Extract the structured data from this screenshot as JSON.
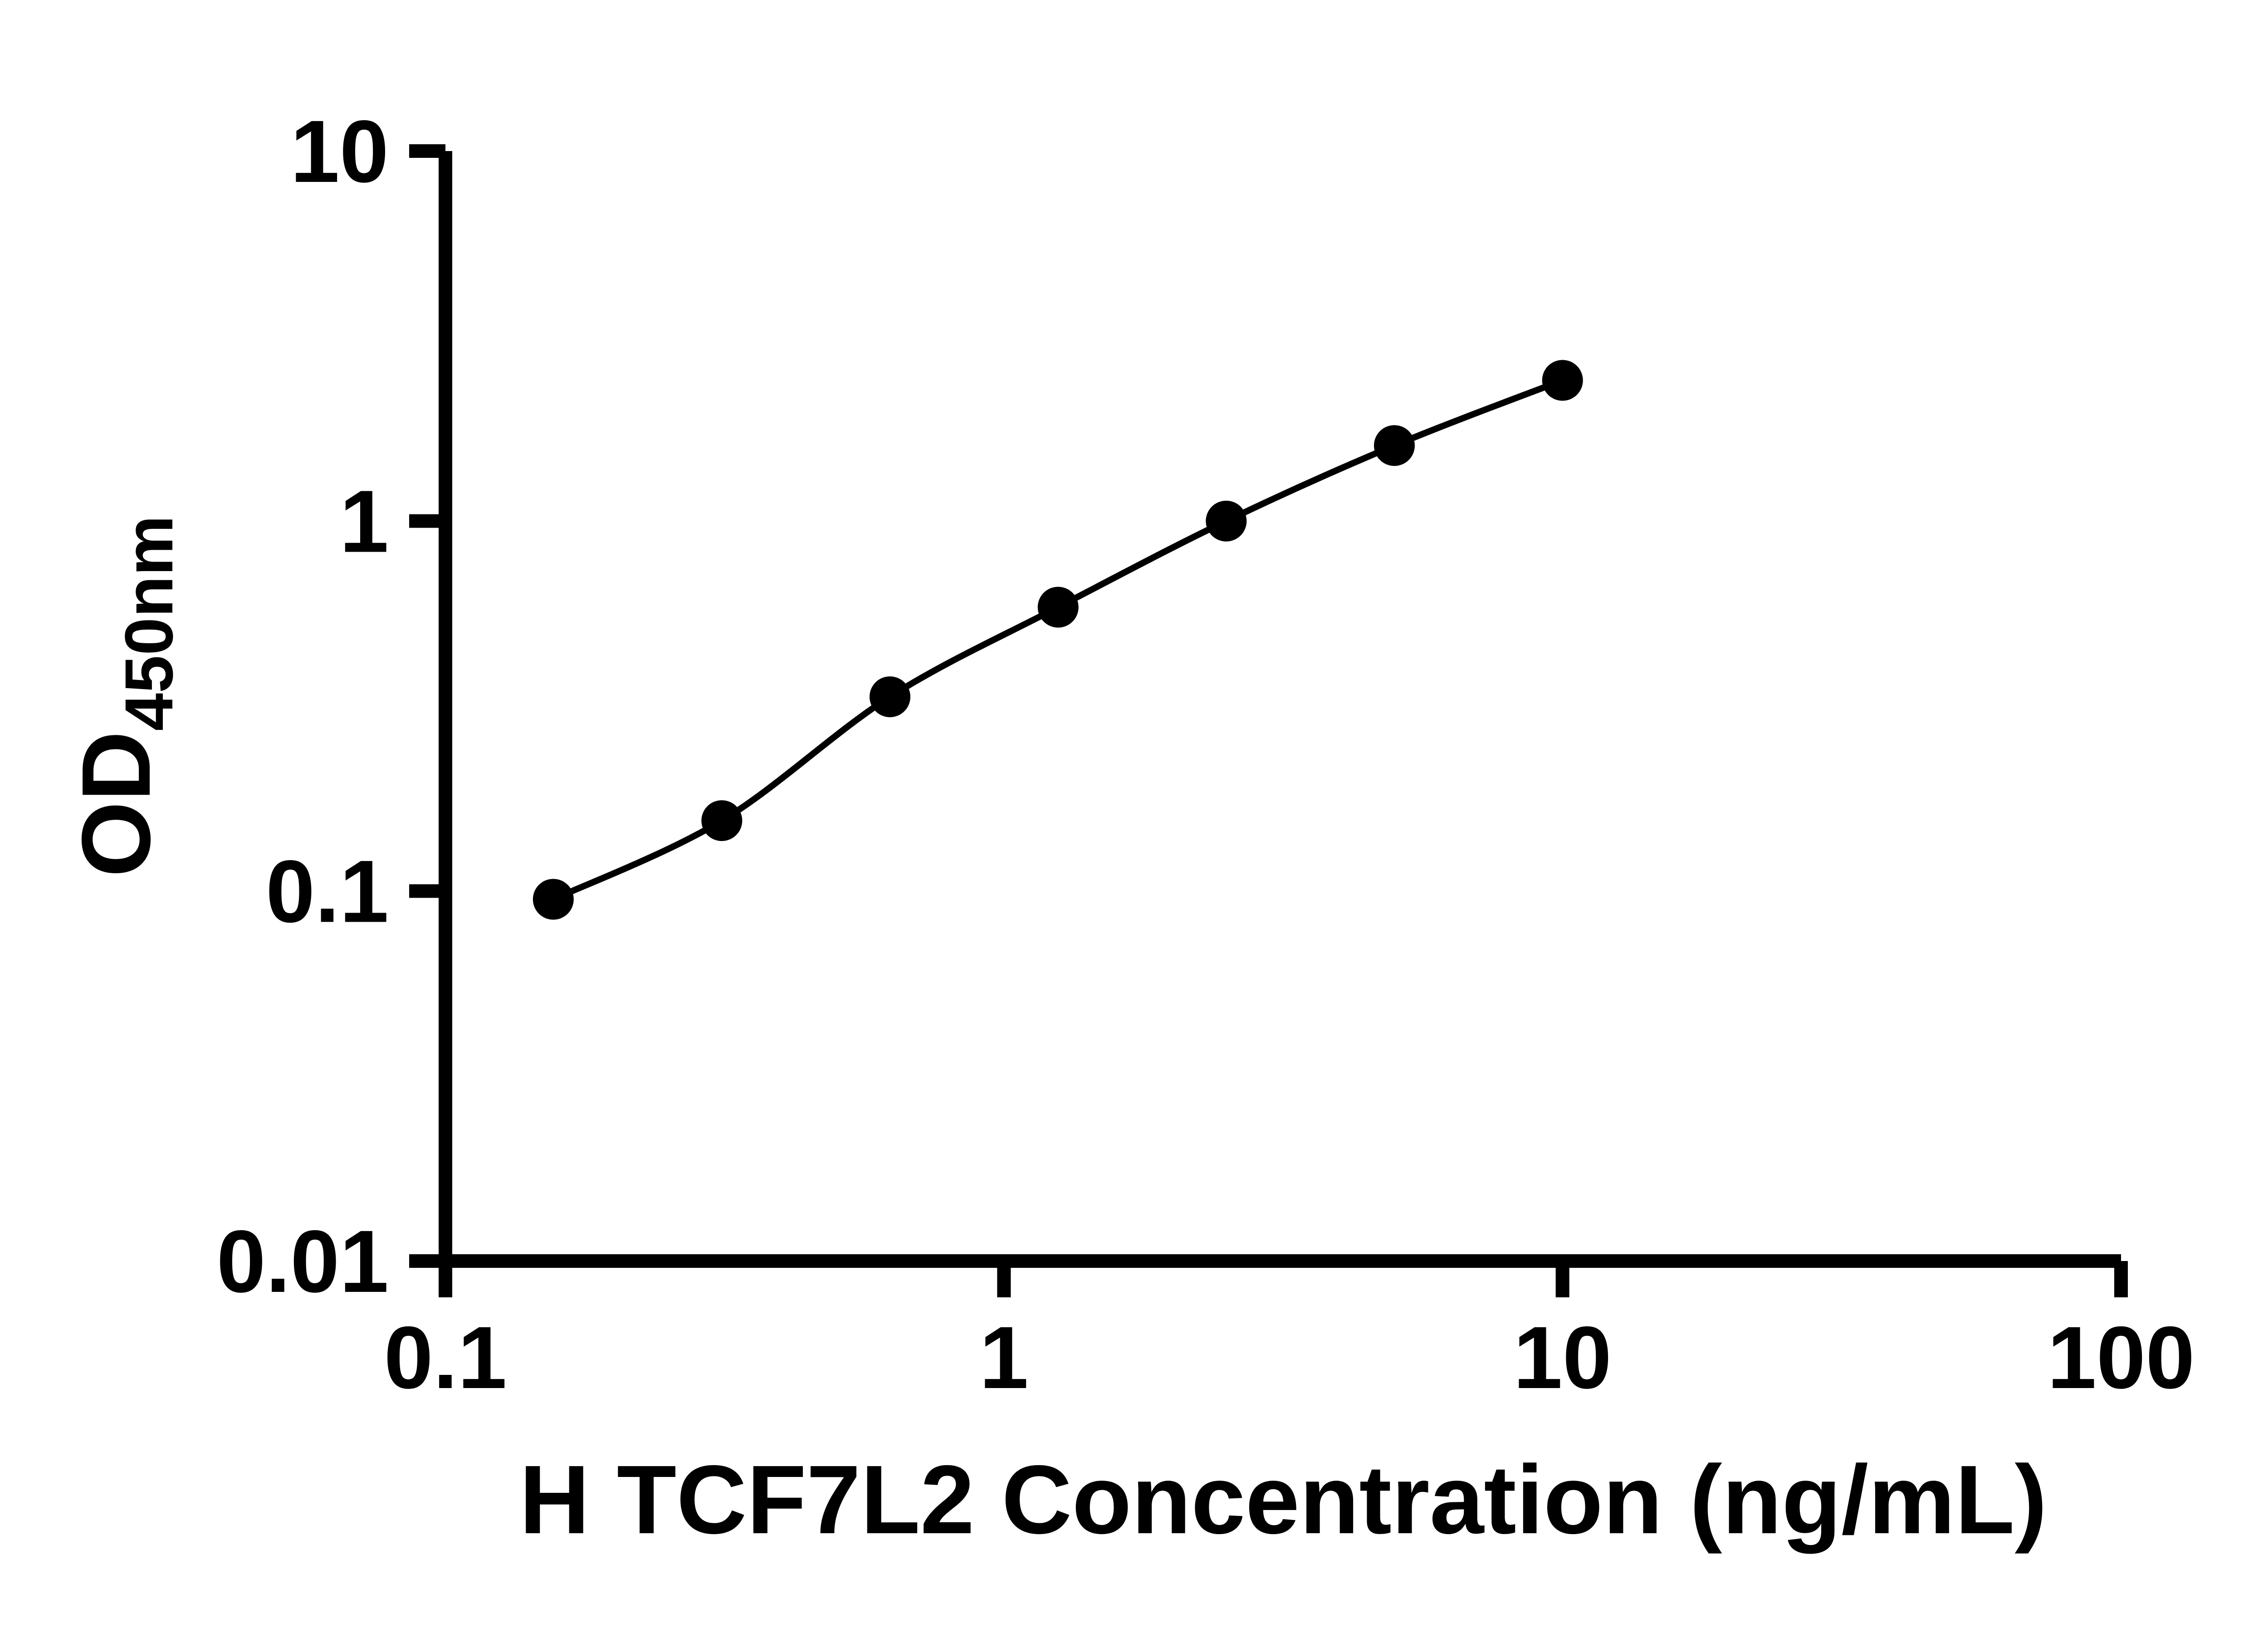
{
  "chart_data": {
    "type": "scatter",
    "title": "",
    "xlabel": "H TCF7L2 Concentration (ng/mL)",
    "ylabel_main": "OD",
    "ylabel_sub": "450nm",
    "x_scale": "log",
    "y_scale": "log",
    "xlim": [
      0.1,
      100
    ],
    "ylim": [
      0.01,
      10
    ],
    "grid": false,
    "legend": "none",
    "x_ticks": [
      {
        "value": 0.1,
        "label": "0.1"
      },
      {
        "value": 1,
        "label": "1"
      },
      {
        "value": 10,
        "label": "10"
      },
      {
        "value": 100,
        "label": "100"
      }
    ],
    "y_ticks": [
      {
        "value": 0.01,
        "label": "0.01"
      },
      {
        "value": 0.1,
        "label": "0.1"
      },
      {
        "value": 1,
        "label": "1"
      },
      {
        "value": 10,
        "label": "10"
      }
    ],
    "series": [
      {
        "name": "standard-curve",
        "marker": "filled-circle",
        "line": "smooth-fit",
        "color": "#000000",
        "points": [
          {
            "x": 0.156,
            "y": 0.095
          },
          {
            "x": 0.3125,
            "y": 0.155
          },
          {
            "x": 0.625,
            "y": 0.335
          },
          {
            "x": 1.25,
            "y": 0.585
          },
          {
            "x": 2.5,
            "y": 1.0
          },
          {
            "x": 5,
            "y": 1.6
          },
          {
            "x": 10,
            "y": 2.4
          }
        ]
      }
    ],
    "colors": {
      "axis": "#000000",
      "marker": "#000000",
      "curve": "#000000",
      "background": "#ffffff"
    }
  }
}
